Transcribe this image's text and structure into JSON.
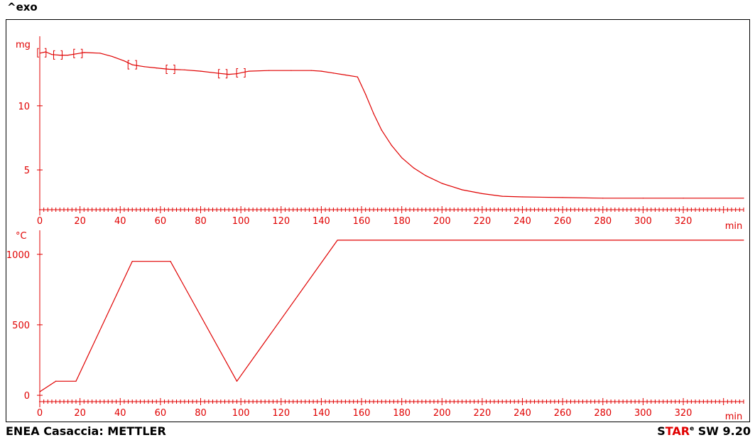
{
  "header": {
    "exo_label": "^exo"
  },
  "footer": {
    "left_label": "ENEA Casaccia: METTLER",
    "brand_s": "S",
    "brand_tar": "TAR",
    "brand_e": "e",
    "brand_sw": " SW 9.20"
  },
  "colors": {
    "curve": "#e00000",
    "frame": "#000000",
    "text": "#000000"
  },
  "chart_data": [
    {
      "type": "line",
      "name": "mass",
      "ylabel": "mg",
      "xlabel": "min",
      "xlim": [
        0,
        350
      ],
      "ylim": [
        1.9,
        15.2
      ],
      "yticks": [
        5,
        10
      ],
      "xticks": [
        0,
        20,
        40,
        60,
        80,
        100,
        120,
        140,
        160,
        180,
        200,
        220,
        240,
        260,
        280,
        300,
        320
      ],
      "x": [
        0,
        3,
        6,
        10,
        14,
        18,
        22,
        30,
        36,
        42,
        46,
        52,
        58,
        64,
        72,
        80,
        88,
        94,
        98,
        104,
        114,
        125,
        135,
        140,
        146,
        152,
        158,
        162,
        166,
        170,
        175,
        180,
        186,
        192,
        200,
        210,
        220,
        230,
        240,
        260,
        280,
        300,
        320,
        350
      ],
      "y": [
        14.1,
        14.2,
        14.0,
        13.95,
        13.95,
        14.05,
        14.15,
        14.1,
        13.85,
        13.5,
        13.2,
        13.05,
        12.95,
        12.85,
        12.8,
        12.7,
        12.55,
        12.45,
        12.5,
        12.7,
        12.75,
        12.75,
        12.75,
        12.7,
        12.55,
        12.4,
        12.25,
        10.9,
        9.4,
        8.1,
        6.9,
        5.95,
        5.15,
        4.55,
        3.95,
        3.45,
        3.15,
        2.95,
        2.9,
        2.85,
        2.8,
        2.8,
        2.8,
        2.8
      ],
      "bracket_marks": [
        1,
        9,
        19,
        46,
        65,
        91,
        100
      ]
    },
    {
      "type": "line",
      "name": "temperature",
      "ylabel": "°C",
      "xlabel": "min",
      "xlim": [
        0,
        350
      ],
      "ylim": [
        -60,
        1150
      ],
      "yticks": [
        0,
        500,
        1000
      ],
      "xticks": [
        0,
        20,
        40,
        60,
        80,
        100,
        120,
        140,
        160,
        180,
        200,
        220,
        240,
        260,
        280,
        300,
        320
      ],
      "x": [
        0,
        8,
        18,
        46,
        65,
        98,
        148,
        350
      ],
      "y": [
        25,
        100,
        100,
        950,
        950,
        100,
        1100,
        1100
      ]
    }
  ]
}
